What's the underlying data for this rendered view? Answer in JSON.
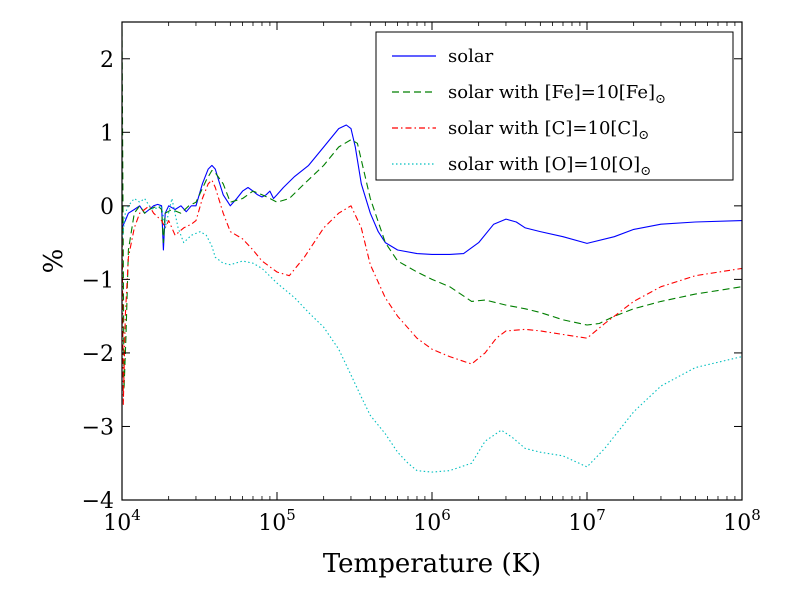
{
  "chart_data": {
    "type": "line",
    "title": "",
    "xlabel": "Temperature (K)",
    "ylabel": "%",
    "x_scale": "log",
    "xlim": [
      10000,
      100000000
    ],
    "ylim": [
      -4,
      2.5
    ],
    "grid": false,
    "legend_position": "top-right",
    "x_ticks": [
      {
        "value": 10000,
        "base": "10",
        "exp": "4"
      },
      {
        "value": 100000,
        "base": "10",
        "exp": "5"
      },
      {
        "value": 1000000,
        "base": "10",
        "exp": "6"
      },
      {
        "value": 10000000,
        "base": "10",
        "exp": "7"
      },
      {
        "value": 100000000,
        "base": "10",
        "exp": "8"
      }
    ],
    "y_ticks": [
      {
        "value": 2,
        "label": "2"
      },
      {
        "value": 1,
        "label": "1"
      },
      {
        "value": 0,
        "label": "0"
      },
      {
        "value": -1,
        "label": "−1"
      },
      {
        "value": -2,
        "label": "−2"
      },
      {
        "value": -3,
        "label": "−3"
      },
      {
        "value": -4,
        "label": "−4"
      }
    ],
    "series": [
      {
        "name": "solar",
        "legend": {
          "prefix": "solar",
          "main": "",
          "sub": ""
        },
        "color": "#0000ff",
        "style": "solid",
        "x": [
          10000,
          10500,
          11000,
          12000,
          13000,
          14000,
          15000,
          16000,
          17000,
          18000,
          18500,
          19000,
          20000,
          22000,
          24000,
          26000,
          28000,
          30000,
          33000,
          36000,
          38000,
          40000,
          42000,
          45000,
          50000,
          55000,
          60000,
          65000,
          70000,
          75000,
          80000,
          85000,
          90000,
          95000,
          100000,
          110000,
          130000,
          160000,
          200000,
          250000,
          280000,
          300000,
          320000,
          350000,
          400000,
          450000,
          500000,
          600000,
          800000,
          1000000,
          1300000,
          1600000,
          2000000,
          2500000,
          3000000,
          3500000,
          4000000,
          5000000,
          7000000,
          10000000,
          15000000,
          20000000,
          30000000,
          50000000,
          100000000
        ],
        "y": [
          -0.3,
          -0.2,
          -0.1,
          -0.05,
          0.0,
          -0.1,
          -0.05,
          0.0,
          0.02,
          0.0,
          -0.6,
          -0.1,
          0.0,
          -0.05,
          0.0,
          -0.08,
          0.0,
          0.0,
          0.3,
          0.5,
          0.55,
          0.5,
          0.35,
          0.15,
          0.0,
          0.1,
          0.2,
          0.25,
          0.2,
          0.15,
          0.12,
          0.15,
          0.2,
          0.1,
          0.15,
          0.25,
          0.4,
          0.55,
          0.8,
          1.05,
          1.1,
          1.05,
          0.8,
          0.3,
          -0.1,
          -0.35,
          -0.5,
          -0.6,
          -0.65,
          -0.66,
          -0.66,
          -0.65,
          -0.5,
          -0.25,
          -0.18,
          -0.22,
          -0.3,
          -0.35,
          -0.42,
          -0.51,
          -0.42,
          -0.32,
          -0.25,
          -0.22,
          -0.2
        ]
      },
      {
        "name": "solar with [Fe]=10[Fe]⊙",
        "legend": {
          "prefix": "solar with ",
          "main": "[Fe]=10[Fe]",
          "sub": "⊙"
        },
        "color": "#007f00",
        "style": "dashed",
        "x": [
          10000,
          10300,
          10600,
          11000,
          12000,
          13000,
          14000,
          15000,
          17000,
          18000,
          18500,
          19000,
          21000,
          24000,
          27000,
          30000,
          35000,
          38000,
          40000,
          45000,
          50000,
          60000,
          70000,
          80000,
          90000,
          100000,
          120000,
          150000,
          200000,
          250000,
          300000,
          330000,
          400000,
          500000,
          600000,
          800000,
          1000000,
          1300000,
          1800000,
          2200000,
          3000000,
          4000000,
          5000000,
          7000000,
          10000000,
          12000000,
          15000000,
          20000000,
          30000000,
          50000000,
          100000000
        ],
        "y": [
          2.4,
          -2.5,
          -1.8,
          -0.6,
          -0.1,
          0.0,
          -0.1,
          -0.05,
          0.0,
          -0.05,
          -0.5,
          -0.1,
          -0.05,
          -0.1,
          0.0,
          0.05,
          0.35,
          0.48,
          0.45,
          0.3,
          0.05,
          0.1,
          0.2,
          0.15,
          0.1,
          0.05,
          0.1,
          0.3,
          0.55,
          0.8,
          0.9,
          0.85,
          0.1,
          -0.5,
          -0.75,
          -0.9,
          -1.0,
          -1.1,
          -1.3,
          -1.28,
          -1.35,
          -1.4,
          -1.45,
          -1.55,
          -1.62,
          -1.6,
          -1.5,
          -1.4,
          -1.3,
          -1.2,
          -1.1
        ]
      },
      {
        "name": "solar with [C]=10[C]⊙",
        "legend": {
          "prefix": "solar with ",
          "main": "[C]=10[C]",
          "sub": "⊙"
        },
        "color": "#ff0000",
        "style": "dashdot",
        "x": [
          10000,
          10200,
          10500,
          11000,
          12000,
          13000,
          14000,
          15000,
          16000,
          18000,
          19000,
          20000,
          22000,
          25000,
          28000,
          30000,
          33000,
          36000,
          38000,
          40000,
          45000,
          50000,
          60000,
          70000,
          80000,
          100000,
          120000,
          150000,
          200000,
          250000,
          300000,
          350000,
          400000,
          500000,
          600000,
          800000,
          1000000,
          1300000,
          1800000,
          2200000,
          2600000,
          3000000,
          4000000,
          5000000,
          7000000,
          10000000,
          13000000,
          20000000,
          30000000,
          50000000,
          100000000
        ],
        "y": [
          -0.05,
          -2.7,
          -1.5,
          -0.7,
          -0.3,
          -0.1,
          -0.05,
          0.0,
          -0.1,
          -0.2,
          -0.3,
          -0.2,
          -0.4,
          -0.3,
          -0.25,
          -0.2,
          0.1,
          0.3,
          0.35,
          0.25,
          -0.1,
          -0.35,
          -0.45,
          -0.6,
          -0.75,
          -0.9,
          -0.95,
          -0.7,
          -0.3,
          -0.1,
          0.0,
          -0.3,
          -0.8,
          -1.25,
          -1.5,
          -1.8,
          -1.95,
          -2.05,
          -2.15,
          -2.0,
          -1.8,
          -1.7,
          -1.68,
          -1.7,
          -1.75,
          -1.8,
          -1.6,
          -1.3,
          -1.1,
          -0.95,
          -0.85
        ]
      },
      {
        "name": "solar with [O]=10[O]⊙",
        "legend": {
          "prefix": "solar with ",
          "main": "[O]=10[O]",
          "sub": "⊙"
        },
        "color": "#00bfbf",
        "style": "dotted",
        "x": [
          10000,
          10500,
          11000,
          12000,
          13000,
          14000,
          15000,
          16000,
          18000,
          19000,
          21000,
          23000,
          25000,
          28000,
          32000,
          35000,
          38000,
          40000,
          45000,
          50000,
          60000,
          70000,
          80000,
          100000,
          130000,
          160000,
          200000,
          250000,
          300000,
          350000,
          400000,
          500000,
          600000,
          700000,
          800000,
          1000000,
          1300000,
          1800000,
          2200000,
          2800000,
          3300000,
          4000000,
          5000000,
          7000000,
          10000000,
          13000000,
          20000000,
          30000000,
          50000000,
          100000000
        ],
        "y": [
          -0.5,
          -0.1,
          0.0,
          0.1,
          0.05,
          0.1,
          0.0,
          -0.05,
          0.0,
          -0.3,
          0.1,
          -0.3,
          -0.5,
          -0.4,
          -0.35,
          -0.4,
          -0.55,
          -0.7,
          -0.78,
          -0.8,
          -0.75,
          -0.78,
          -0.85,
          -1.05,
          -1.25,
          -1.45,
          -1.65,
          -1.95,
          -2.3,
          -2.6,
          -2.85,
          -3.1,
          -3.35,
          -3.5,
          -3.6,
          -3.62,
          -3.6,
          -3.5,
          -3.2,
          -3.05,
          -3.15,
          -3.3,
          -3.35,
          -3.4,
          -3.55,
          -3.3,
          -2.8,
          -2.45,
          -2.2,
          -2.05
        ]
      }
    ]
  }
}
